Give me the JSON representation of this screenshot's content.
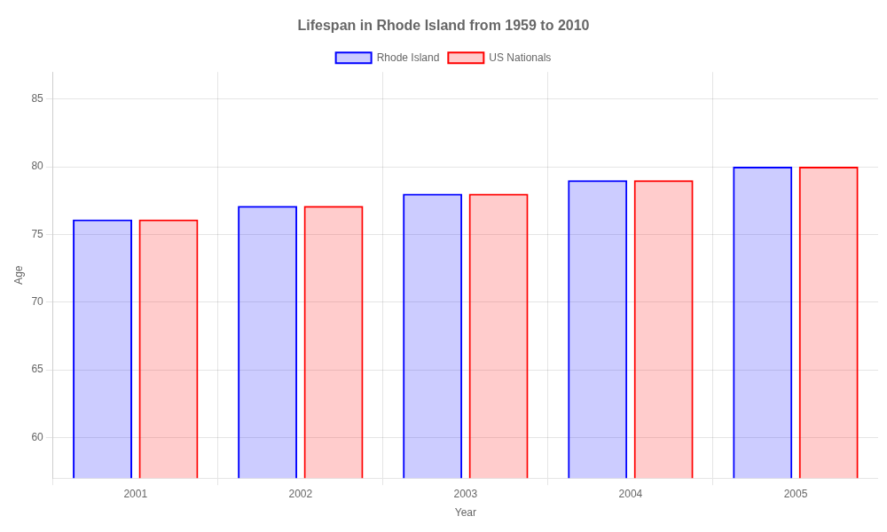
{
  "chart_data": {
    "type": "bar",
    "title": "Lifespan in Rhode Island from 1959 to 2010",
    "x_label": "Year",
    "y_label": "Age",
    "categories": [
      "2001",
      "2002",
      "2003",
      "2004",
      "2005"
    ],
    "series": [
      {
        "name": "Rhode Island",
        "color": "#0000ff",
        "values": [
          76.1,
          77.1,
          78.0,
          79.0,
          80.0
        ]
      },
      {
        "name": "US Nationals",
        "color": "#ff0000",
        "values": [
          76.1,
          77.1,
          78.0,
          79.0,
          80.0
        ]
      }
    ],
    "ylim": [
      57,
      87
    ],
    "yticks": [
      60,
      65,
      70,
      75,
      80,
      85
    ],
    "grid": true,
    "legend": "top"
  }
}
